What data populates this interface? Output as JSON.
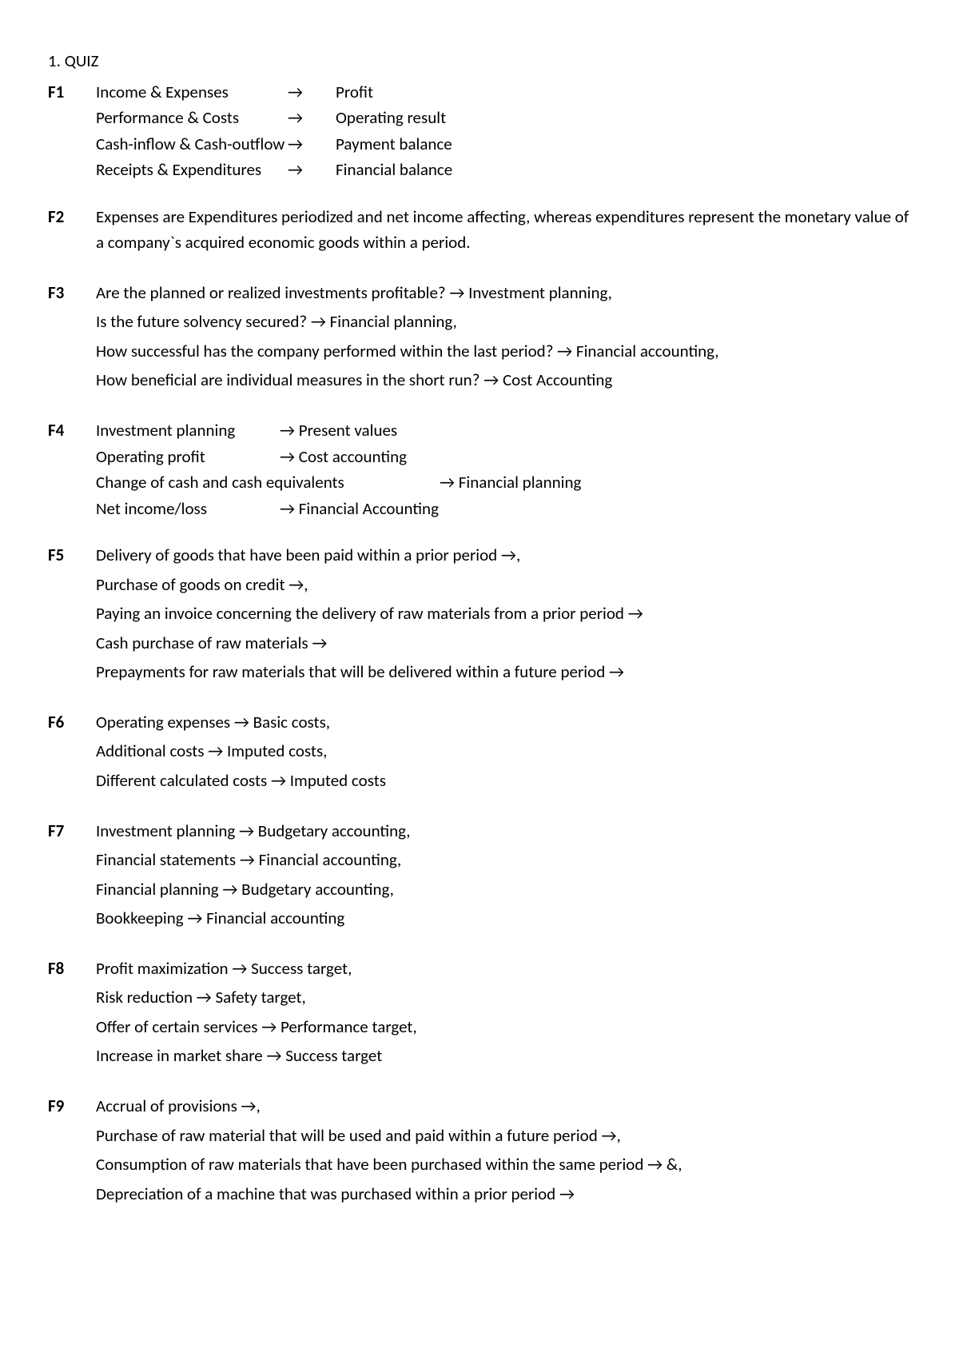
{
  "title": "1. QUIZ",
  "f1": {
    "label": "F1",
    "rows": [
      {
        "left": "Income & Expenses",
        "arrow": "→",
        "right": "Profit"
      },
      {
        "left": "Performance & Costs",
        "arrow": "→",
        "right": "Operating result"
      },
      {
        "left": "Cash-inflow & Cash-outflow",
        "arrow": "→",
        "right": "Payment balance"
      },
      {
        "left": "Receipts & Expenditures",
        "arrow": "→",
        "right": "Financial balance"
      }
    ]
  },
  "f2": {
    "label": "F2",
    "text": "Expenses are Expenditures periodized and net income affecting, whereas expenditures represent the monetary value of a company`s acquired economic goods within a period."
  },
  "f3": {
    "label": "F3",
    "lines": [
      "Are the planned or realized investments profitable? → Investment planning,",
      "Is the future solvency secured? → Financial planning,",
      "How successful has the company performed within the last period? → Financial accounting,",
      "How beneficial are individual measures in the short run? → Cost Accounting"
    ]
  },
  "f4": {
    "label": "F4",
    "rows": [
      {
        "left": "Investment planning",
        "mid": "→ Present values",
        "right": ""
      },
      {
        "left": "Operating profit",
        "mid": "→ Cost accounting",
        "right": ""
      },
      {
        "left": "Change of cash and cash equivalents",
        "mid": "",
        "right": "→ Financial planning"
      },
      {
        "left": "Net income/loss",
        "mid": "→ Financial Accounting",
        "right": ""
      }
    ]
  },
  "f5": {
    "label": "F5",
    "lines": [
      "Delivery of goods that have been paid within a prior period →,",
      "Purchase of goods on credit →,",
      "Paying an invoice concerning the delivery of raw materials from a prior period →",
      "Cash purchase of raw materials →",
      "Prepayments for raw materials that will be delivered within a future period →"
    ]
  },
  "f6": {
    "label": "F6",
    "lines": [
      "Operating expenses → Basic costs,",
      "Additional costs → Imputed costs,",
      "Different calculated costs → Imputed costs"
    ]
  },
  "f7": {
    "label": "F7",
    "lines": [
      "Investment planning → Budgetary accounting,",
      "Financial statements → Financial accounting,",
      "Financial planning → Budgetary accounting,",
      "Bookkeeping → Financial accounting"
    ]
  },
  "f8": {
    "label": "F8",
    "lines": [
      "Profit maximization → Success target,",
      "Risk reduction → Safety target,",
      "Offer of certain services → Performance target,",
      "Increase in market share → Success target"
    ]
  },
  "f9": {
    "label": "F9",
    "lines": [
      "Accrual of provisions →,",
      "Purchase of raw material that will be used and paid within a future period →,",
      "Consumption of raw materials that have been purchased within the same period → &,",
      "Depreciation of a machine that was purchased within a prior period →"
    ]
  }
}
